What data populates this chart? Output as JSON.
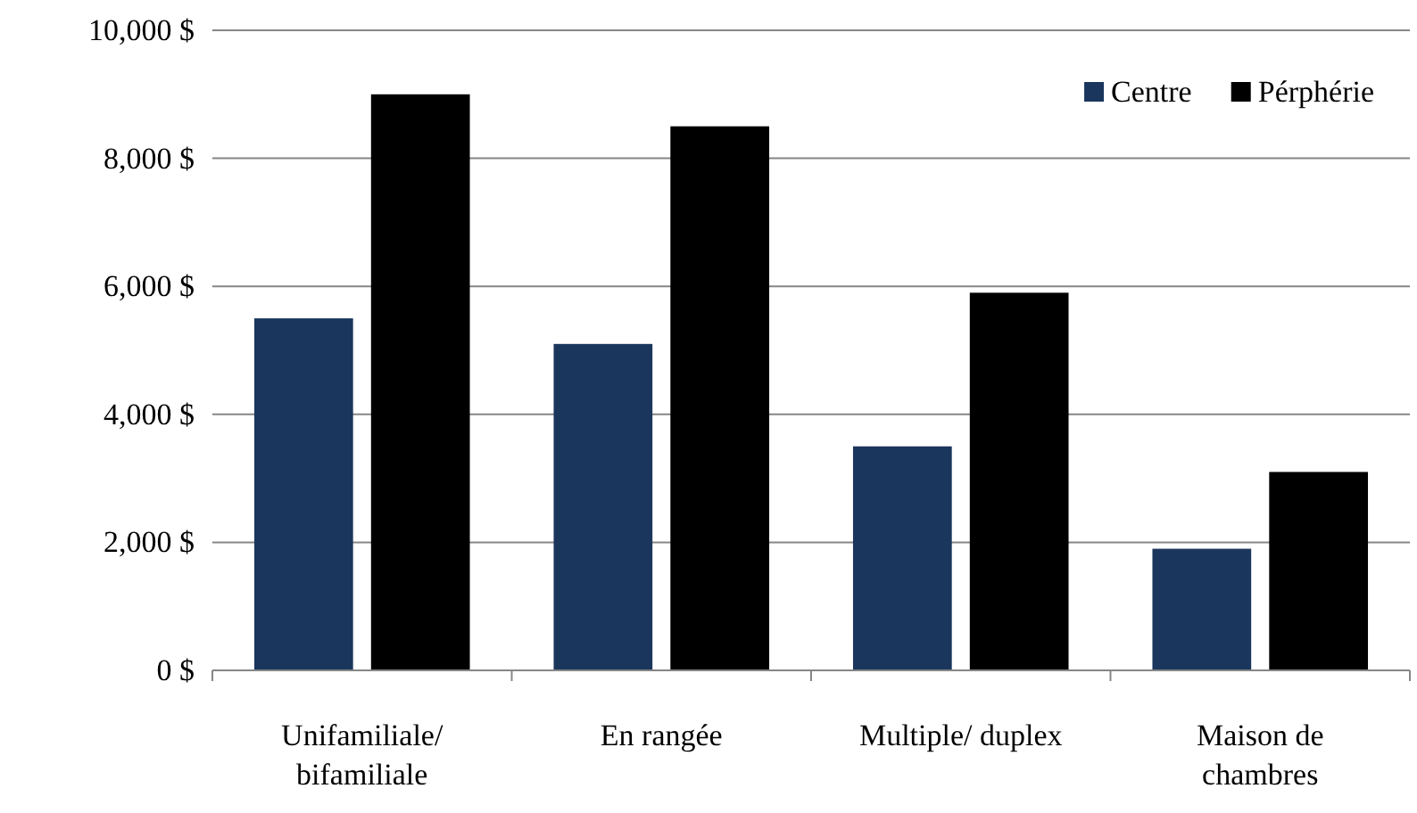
{
  "chart_data": {
    "type": "bar",
    "categories": [
      "Unifamiliale/ bifamiliale",
      "En rangée",
      "Multiple/ duplex",
      "Maison de chambres"
    ],
    "series": [
      {
        "name": "Centre",
        "color": "#1b365d",
        "values": [
          5500,
          5100,
          3500,
          1900
        ]
      },
      {
        "name": "Pérphérie",
        "color": "#000000",
        "values": [
          9000,
          8500,
          5900,
          3100
        ]
      }
    ],
    "ylim": [
      0,
      10000
    ],
    "yticks": [
      {
        "value": 0,
        "label": "0 $"
      },
      {
        "value": 2000,
        "label": "2,000 $"
      },
      {
        "value": 4000,
        "label": "4,000 $"
      },
      {
        "value": 6000,
        "label": "6,000 $"
      },
      {
        "value": 8000,
        "label": "8,000 $"
      },
      {
        "value": 10000,
        "label": "10,000 $"
      }
    ],
    "grid": "y",
    "legend": "top right"
  }
}
